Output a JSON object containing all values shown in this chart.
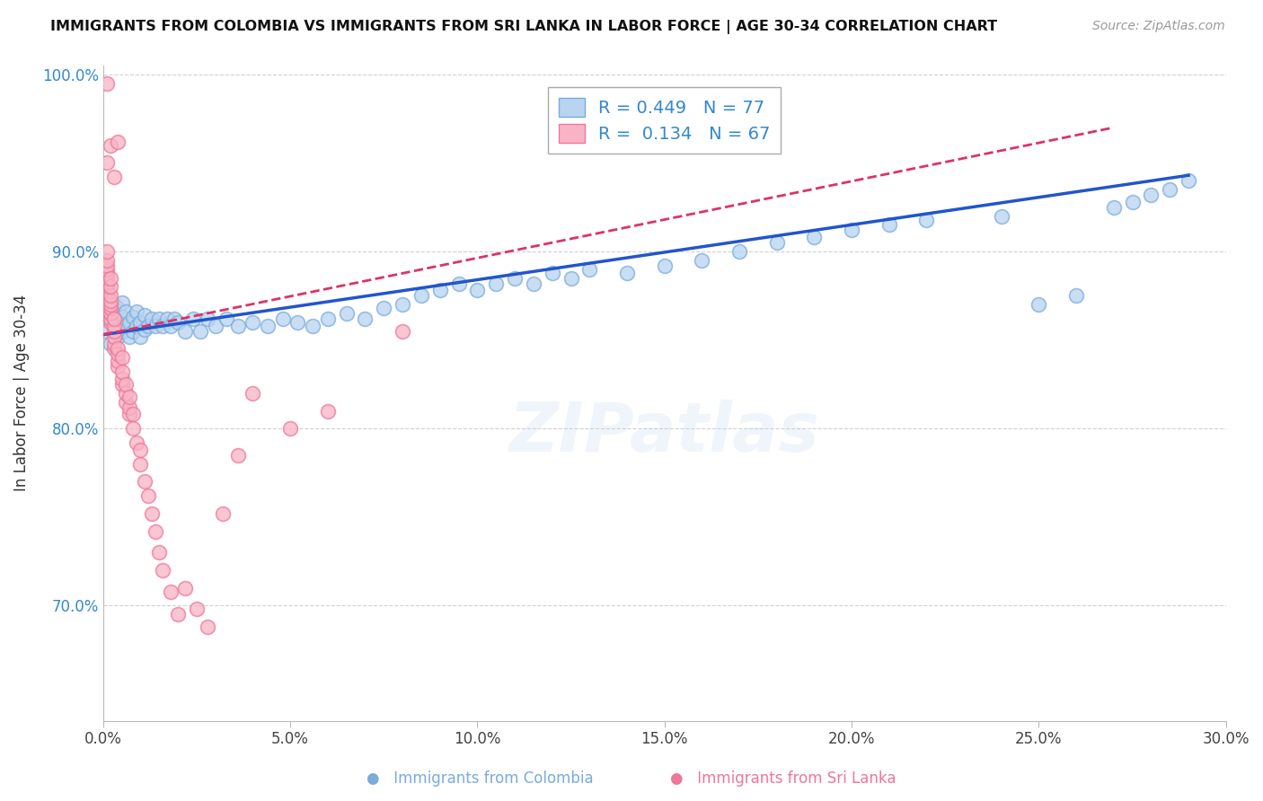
{
  "title": "IMMIGRANTS FROM COLOMBIA VS IMMIGRANTS FROM SRI LANKA IN LABOR FORCE | AGE 30-34 CORRELATION CHART",
  "source": "Source: ZipAtlas.com",
  "xlabel": "",
  "ylabel": "In Labor Force | Age 30-34",
  "xlim": [
    0.0,
    0.3
  ],
  "ylim": [
    0.635,
    1.005
  ],
  "xticks": [
    0.0,
    0.05,
    0.1,
    0.15,
    0.2,
    0.25,
    0.3
  ],
  "xticklabels": [
    "0.0%",
    "5.0%",
    "10.0%",
    "15.0%",
    "20.0%",
    "25.0%",
    "30.0%"
  ],
  "yticks": [
    0.7,
    0.8,
    0.9,
    1.0
  ],
  "yticklabels": [
    "70.0%",
    "80.0%",
    "90.0%",
    "100.0%"
  ],
  "colombia_color": "#b8d4f0",
  "srilanka_color": "#f8b4c4",
  "colombia_edge": "#7aabdd",
  "srilanka_edge": "#ee7799",
  "trend_colombia_color": "#2255cc",
  "trend_srilanka_color": "#dd3366",
  "R_colombia": 0.449,
  "N_colombia": 77,
  "R_srilanka": 0.134,
  "N_srilanka": 67,
  "legend_label_colombia": "Immigrants from Colombia",
  "legend_label_srilanka": "Immigrants from Sri Lanka",
  "watermark": "ZIPatlas",
  "colombia_x": [
    0.001,
    0.002,
    0.002,
    0.003,
    0.003,
    0.003,
    0.004,
    0.004,
    0.004,
    0.005,
    0.005,
    0.005,
    0.006,
    0.006,
    0.007,
    0.007,
    0.008,
    0.008,
    0.009,
    0.009,
    0.01,
    0.01,
    0.011,
    0.011,
    0.012,
    0.013,
    0.014,
    0.015,
    0.016,
    0.017,
    0.018,
    0.019,
    0.02,
    0.022,
    0.024,
    0.026,
    0.028,
    0.03,
    0.033,
    0.036,
    0.04,
    0.044,
    0.048,
    0.052,
    0.056,
    0.06,
    0.065,
    0.07,
    0.075,
    0.08,
    0.085,
    0.09,
    0.095,
    0.1,
    0.105,
    0.11,
    0.115,
    0.12,
    0.125,
    0.13,
    0.14,
    0.15,
    0.16,
    0.17,
    0.18,
    0.19,
    0.2,
    0.21,
    0.22,
    0.24,
    0.25,
    0.26,
    0.27,
    0.275,
    0.28,
    0.285,
    0.29
  ],
  "colombia_y": [
    0.855,
    0.862,
    0.848,
    0.858,
    0.865,
    0.87,
    0.852,
    0.86,
    0.868,
    0.855,
    0.863,
    0.871,
    0.858,
    0.866,
    0.852,
    0.86,
    0.855,
    0.863,
    0.858,
    0.866,
    0.852,
    0.86,
    0.856,
    0.864,
    0.858,
    0.862,
    0.858,
    0.862,
    0.858,
    0.862,
    0.858,
    0.862,
    0.86,
    0.855,
    0.862,
    0.855,
    0.862,
    0.858,
    0.862,
    0.858,
    0.86,
    0.858,
    0.862,
    0.86,
    0.858,
    0.862,
    0.865,
    0.862,
    0.868,
    0.87,
    0.875,
    0.878,
    0.882,
    0.878,
    0.882,
    0.885,
    0.882,
    0.888,
    0.885,
    0.89,
    0.888,
    0.892,
    0.895,
    0.9,
    0.905,
    0.908,
    0.912,
    0.915,
    0.918,
    0.92,
    0.87,
    0.875,
    0.925,
    0.928,
    0.932,
    0.935,
    0.94
  ],
  "srilanka_x": [
    0.001,
    0.001,
    0.001,
    0.001,
    0.001,
    0.001,
    0.001,
    0.001,
    0.001,
    0.001,
    0.001,
    0.001,
    0.001,
    0.002,
    0.002,
    0.002,
    0.002,
    0.002,
    0.002,
    0.002,
    0.002,
    0.002,
    0.002,
    0.003,
    0.003,
    0.003,
    0.003,
    0.003,
    0.003,
    0.003,
    0.004,
    0.004,
    0.004,
    0.004,
    0.004,
    0.005,
    0.005,
    0.005,
    0.005,
    0.006,
    0.006,
    0.006,
    0.007,
    0.007,
    0.007,
    0.008,
    0.008,
    0.009,
    0.01,
    0.01,
    0.011,
    0.012,
    0.013,
    0.014,
    0.015,
    0.016,
    0.018,
    0.02,
    0.022,
    0.025,
    0.028,
    0.032,
    0.036,
    0.04,
    0.05,
    0.06,
    0.08
  ],
  "srilanka_y": [
    0.87,
    0.875,
    0.878,
    0.88,
    0.882,
    0.885,
    0.888,
    0.89,
    0.892,
    0.895,
    0.9,
    0.95,
    0.995,
    0.86,
    0.862,
    0.865,
    0.868,
    0.87,
    0.872,
    0.875,
    0.88,
    0.885,
    0.96,
    0.845,
    0.848,
    0.852,
    0.855,
    0.858,
    0.862,
    0.942,
    0.835,
    0.838,
    0.842,
    0.845,
    0.962,
    0.825,
    0.828,
    0.832,
    0.84,
    0.815,
    0.82,
    0.825,
    0.808,
    0.812,
    0.818,
    0.8,
    0.808,
    0.792,
    0.78,
    0.788,
    0.77,
    0.762,
    0.752,
    0.742,
    0.73,
    0.72,
    0.708,
    0.695,
    0.71,
    0.698,
    0.688,
    0.752,
    0.785,
    0.82,
    0.8,
    0.81,
    0.855
  ]
}
